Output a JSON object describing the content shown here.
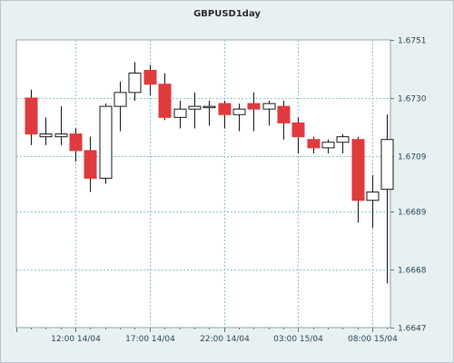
{
  "chart_data": {
    "type": "candlestick",
    "title": "GBPUSD1day",
    "xlabel": "",
    "ylabel": "",
    "ylim": [
      1.6647,
      1.6751
    ],
    "y_ticks": [
      "1.6751",
      "1.6730",
      "1.6709",
      "1.6689",
      "1.6668",
      "1.6647"
    ],
    "y_tick_values": [
      1.6751,
      1.673,
      1.6709,
      1.6689,
      1.6668,
      1.6647
    ],
    "x_ticks": [
      "12:00 14/04",
      "17:00 14/04",
      "22:00 14/04",
      "03:00 15/04",
      "08:00 15/04"
    ],
    "x_tick_index": [
      3,
      8,
      13,
      18,
      23
    ],
    "grid": true,
    "up_color": "#ffffff",
    "down_color": "#e03a3e",
    "candles": [
      {
        "o": 1.673,
        "h": 1.6733,
        "l": 1.6713,
        "c": 1.6717
      },
      {
        "o": 1.6716,
        "h": 1.6723,
        "l": 1.6713,
        "c": 1.6717
      },
      {
        "o": 1.6716,
        "h": 1.6727,
        "l": 1.6713,
        "c": 1.6717
      },
      {
        "o": 1.6717,
        "h": 1.6719,
        "l": 1.6707,
        "c": 1.6711
      },
      {
        "o": 1.6711,
        "h": 1.6716,
        "l": 1.6696,
        "c": 1.6701
      },
      {
        "o": 1.6701,
        "h": 1.6728,
        "l": 1.6699,
        "c": 1.6727
      },
      {
        "o": 1.6727,
        "h": 1.6736,
        "l": 1.6718,
        "c": 1.6732
      },
      {
        "o": 1.6732,
        "h": 1.6743,
        "l": 1.6729,
        "c": 1.6739
      },
      {
        "o": 1.674,
        "h": 1.6742,
        "l": 1.6731,
        "c": 1.6735
      },
      {
        "o": 1.6735,
        "h": 1.6739,
        "l": 1.6722,
        "c": 1.6723
      },
      {
        "o": 1.6723,
        "h": 1.6729,
        "l": 1.6719,
        "c": 1.6726
      },
      {
        "o": 1.6726,
        "h": 1.6732,
        "l": 1.6719,
        "c": 1.6727
      },
      {
        "o": 1.6727,
        "h": 1.6729,
        "l": 1.672,
        "c": 1.6727
      },
      {
        "o": 1.6728,
        "h": 1.6729,
        "l": 1.6719,
        "c": 1.6724
      },
      {
        "o": 1.6724,
        "h": 1.6728,
        "l": 1.6718,
        "c": 1.6726
      },
      {
        "o": 1.6728,
        "h": 1.6732,
        "l": 1.6718,
        "c": 1.6726
      },
      {
        "o": 1.6726,
        "h": 1.6729,
        "l": 1.672,
        "c": 1.6728
      },
      {
        "o": 1.6727,
        "h": 1.6729,
        "l": 1.6715,
        "c": 1.6721
      },
      {
        "o": 1.6721,
        "h": 1.6723,
        "l": 1.671,
        "c": 1.6716
      },
      {
        "o": 1.6715,
        "h": 1.6716,
        "l": 1.671,
        "c": 1.6712
      },
      {
        "o": 1.6712,
        "h": 1.6715,
        "l": 1.671,
        "c": 1.6714
      },
      {
        "o": 1.6714,
        "h": 1.6717,
        "l": 1.671,
        "c": 1.6716
      },
      {
        "o": 1.6715,
        "h": 1.6716,
        "l": 1.6685,
        "c": 1.6693
      },
      {
        "o": 1.6693,
        "h": 1.6702,
        "l": 1.6683,
        "c": 1.6696
      },
      {
        "o": 1.6697,
        "h": 1.6724,
        "l": 1.6663,
        "c": 1.6715
      }
    ]
  }
}
